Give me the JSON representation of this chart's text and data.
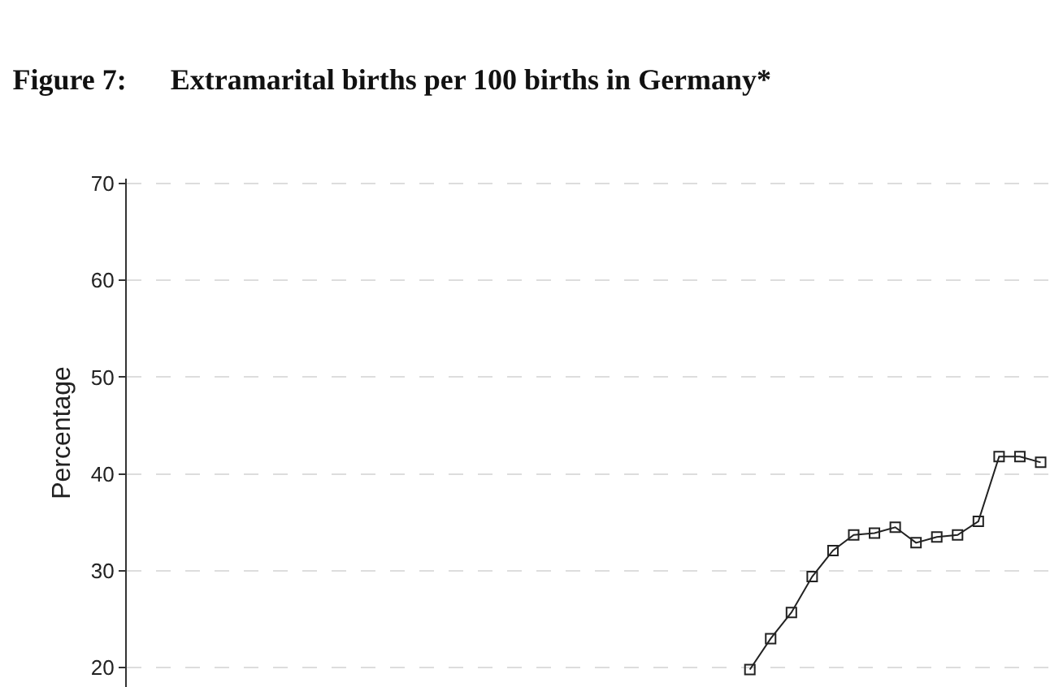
{
  "chart_data": {
    "type": "line",
    "title": "Figure 7:      Extramarital births per 100 births in Germany*",
    "ylabel": "Percentage",
    "categories": [
      null,
      null,
      null,
      null,
      null,
      null,
      null,
      null,
      null,
      null,
      null,
      null,
      null,
      null,
      null,
      null,
      null,
      null,
      null,
      null,
      null,
      null,
      null,
      null,
      null,
      null,
      null,
      null,
      null,
      null,
      null,
      null,
      null,
      null,
      null,
      null,
      null,
      null,
      null,
      null,
      null,
      null,
      null,
      null
    ],
    "series": [
      {
        "color": "#222222",
        "values": [
          null,
          null,
          null,
          null,
          null,
          null,
          null,
          null,
          null,
          null,
          null,
          null,
          null,
          null,
          null,
          null,
          null,
          null,
          null,
          null,
          null,
          null,
          null,
          null,
          null,
          null,
          null,
          null,
          null,
          19.8,
          23.0,
          25.7,
          29.4,
          32.1,
          33.7,
          33.9,
          34.5,
          32.9,
          33.5,
          33.7,
          35.1,
          41.8,
          41.8,
          41.2
        ]
      }
    ],
    "ylim": [
      18,
      70.5
    ],
    "yticks": [
      20,
      30,
      40,
      50,
      60,
      70
    ],
    "grid": "y",
    "marker": "square",
    "line_style": "solid"
  }
}
